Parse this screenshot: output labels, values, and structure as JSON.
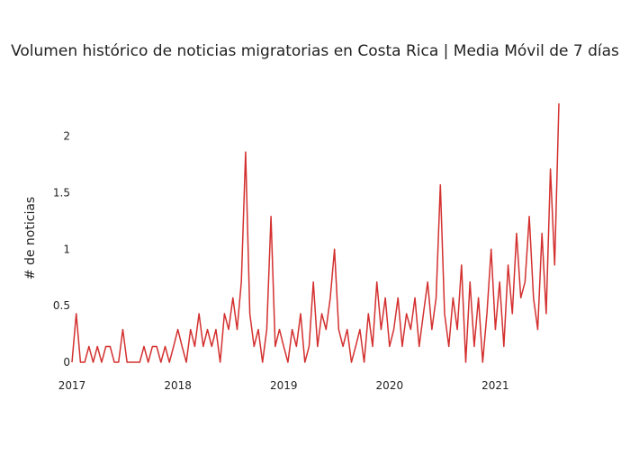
{
  "chart_data": {
    "type": "line",
    "title": "Volumen histórico de noticias migratorias en Costa Rica | Media Móvil de 7 días",
    "y_label": "# de noticias",
    "x": [
      2017.0,
      2017.04,
      2017.08,
      2017.12,
      2017.16,
      2017.2,
      2017.24,
      2017.28,
      2017.32,
      2017.36,
      2017.4,
      2017.44,
      2017.48,
      2017.52,
      2017.56,
      2017.6,
      2017.64,
      2017.68,
      2017.72,
      2017.76,
      2017.8,
      2017.84,
      2017.88,
      2017.92,
      2017.96,
      2018.0,
      2018.04,
      2018.08,
      2018.12,
      2018.16,
      2018.2,
      2018.24,
      2018.28,
      2018.32,
      2018.36,
      2018.4,
      2018.44,
      2018.48,
      2018.52,
      2018.56,
      2018.6,
      2018.64,
      2018.68,
      2018.72,
      2018.76,
      2018.8,
      2018.84,
      2018.88,
      2018.92,
      2018.96,
      2019.0,
      2019.04,
      2019.08,
      2019.12,
      2019.16,
      2019.2,
      2019.24,
      2019.28,
      2019.32,
      2019.36,
      2019.4,
      2019.44,
      2019.48,
      2019.52,
      2019.56,
      2019.6,
      2019.64,
      2019.68,
      2019.72,
      2019.76,
      2019.8,
      2019.84,
      2019.88,
      2019.92,
      2019.96,
      2020.0,
      2020.04,
      2020.08,
      2020.12,
      2020.16,
      2020.2,
      2020.24,
      2020.28,
      2020.32,
      2020.36,
      2020.4,
      2020.44,
      2020.48,
      2020.52,
      2020.56,
      2020.6,
      2020.64,
      2020.68,
      2020.72,
      2020.76,
      2020.8,
      2020.84,
      2020.88,
      2020.92,
      2020.96,
      2021.0,
      2021.04,
      2021.08,
      2021.12,
      2021.16,
      2021.2,
      2021.24,
      2021.28,
      2021.32,
      2021.36,
      2021.4,
      2021.44,
      2021.48,
      2021.52,
      2021.56,
      2021.6
    ],
    "series": [
      {
        "name": "Media Móvil de 7 días",
        "color": "#d3302f",
        "values": [
          0,
          0.43,
          0,
          0,
          0.14,
          0,
          0.14,
          0,
          0.14,
          0.14,
          0,
          0,
          0.29,
          0,
          0,
          0,
          0,
          0.14,
          0,
          0.14,
          0.14,
          0,
          0.14,
          0,
          0.14,
          0.29,
          0.14,
          0,
          0.29,
          0.14,
          0.43,
          0.14,
          0.29,
          0.14,
          0.29,
          0,
          0.43,
          0.29,
          0.57,
          0.29,
          0.71,
          1.86,
          0.43,
          0.14,
          0.29,
          0,
          0.29,
          1.29,
          0.14,
          0.29,
          0.14,
          0,
          0.29,
          0.14,
          0.43,
          0,
          0.14,
          0.71,
          0.14,
          0.43,
          0.29,
          0.57,
          1,
          0.29,
          0.14,
          0.29,
          0,
          0.14,
          0.29,
          0,
          0.43,
          0.14,
          0.71,
          0.29,
          0.57,
          0.14,
          0.29,
          0.57,
          0.14,
          0.43,
          0.29,
          0.57,
          0.14,
          0.43,
          0.71,
          0.29,
          0.57,
          1.57,
          0.43,
          0.14,
          0.57,
          0.29,
          0.86,
          0,
          0.71,
          0.14,
          0.57,
          0,
          0.43,
          1,
          0.29,
          0.71,
          0.14,
          0.86,
          0.43,
          1.14,
          0.57,
          0.71,
          1.29,
          0.57,
          0.29,
          1.14,
          0.43,
          1.71,
          0.86,
          2.29
        ]
      }
    ],
    "xlim": [
      2017,
      2021.6
    ],
    "xticks": [
      2017,
      2018,
      2019,
      2020,
      2021
    ],
    "ylim": [
      -0.095,
      2.29
    ],
    "yticks": [
      0,
      0.5,
      1,
      1.5,
      2
    ],
    "grid": false
  }
}
